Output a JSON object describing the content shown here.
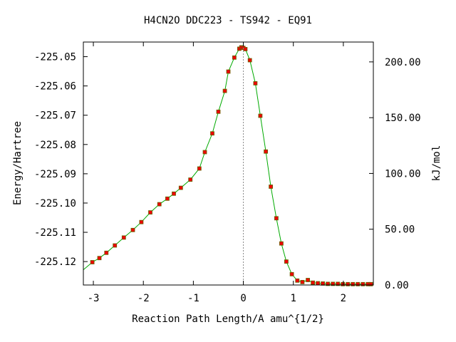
{
  "chart_data": {
    "type": "line",
    "title": "H4CN2O   DDC223 - TS942 - EQ91",
    "xlabel": "Reaction Path Length/A amu^{1/2}",
    "ylabel": "Energy/Hartree",
    "y2label": "kJ/mol",
    "xlim": [
      -3.2,
      2.6
    ],
    "ylim": [
      -225.128,
      -225.045
    ],
    "y2lim": [
      0,
      217.8
    ],
    "x_ticks": [
      -3,
      -2,
      -1,
      0,
      1,
      2
    ],
    "x_tick_labels": [
      "-3",
      "-2",
      "-1",
      "0",
      "1",
      "2"
    ],
    "y_ticks": [
      -225.05,
      -225.06,
      -225.07,
      -225.08,
      -225.09,
      -225.1,
      -225.11,
      -225.12
    ],
    "y_tick_labels": [
      "-225.05",
      "-225.06",
      "-225.07",
      "-225.08",
      "-225.09",
      "-225.10",
      "-225.11",
      "-225.12"
    ],
    "y2_ticks": [
      0,
      50,
      100,
      150,
      200
    ],
    "y2_tick_labels": [
      "0.00",
      "50.00",
      "100.00",
      "150.00",
      "200.00"
    ],
    "grid": false,
    "legend": "none",
    "ts_marker_x": 0,
    "line_color": "#00aa00",
    "marker_color": "#ee0000",
    "marker_edge_color": "#666600",
    "series": [
      {
        "x": [
          -3.2,
          -3.02,
          -2.88,
          -2.74,
          -2.57,
          -2.39,
          -2.21,
          -2.04,
          -1.86,
          -1.68,
          -1.52,
          -1.39,
          -1.25,
          -1.06,
          -0.88,
          -0.77,
          -0.62,
          -0.5,
          -0.37,
          -0.3,
          -0.18,
          -0.08,
          -0.04,
          0.0,
          0.04,
          0.13,
          0.24,
          0.34,
          0.45,
          0.55,
          0.66,
          0.76,
          0.86,
          0.97,
          1.08,
          1.18,
          1.29,
          1.39,
          1.49,
          1.59,
          1.69,
          1.79,
          1.89,
          1.99,
          2.09,
          2.19,
          2.29,
          2.39,
          2.49,
          2.55
        ],
        "y": [
          -225.1228,
          -225.1202,
          -225.1188,
          -225.117,
          -225.1145,
          -225.1118,
          -225.1092,
          -225.1065,
          -225.1032,
          -225.1004,
          -225.0985,
          -225.0968,
          -225.0948,
          -225.092,
          -225.0882,
          -225.0826,
          -225.0762,
          -225.0688,
          -225.0617,
          -225.0551,
          -225.0503,
          -225.0473,
          -225.0468,
          -225.047,
          -225.0474,
          -225.0512,
          -225.0591,
          -225.0702,
          -225.0824,
          -225.0944,
          -225.1052,
          -225.1138,
          -225.12,
          -225.1243,
          -225.1265,
          -225.127,
          -225.1263,
          -225.1272,
          -225.1274,
          -225.1275,
          -225.1276,
          -225.1276,
          -225.1276,
          -225.1277,
          -225.1277,
          -225.1277,
          -225.1277,
          -225.1277,
          -225.1277,
          -225.1277
        ]
      }
    ]
  }
}
